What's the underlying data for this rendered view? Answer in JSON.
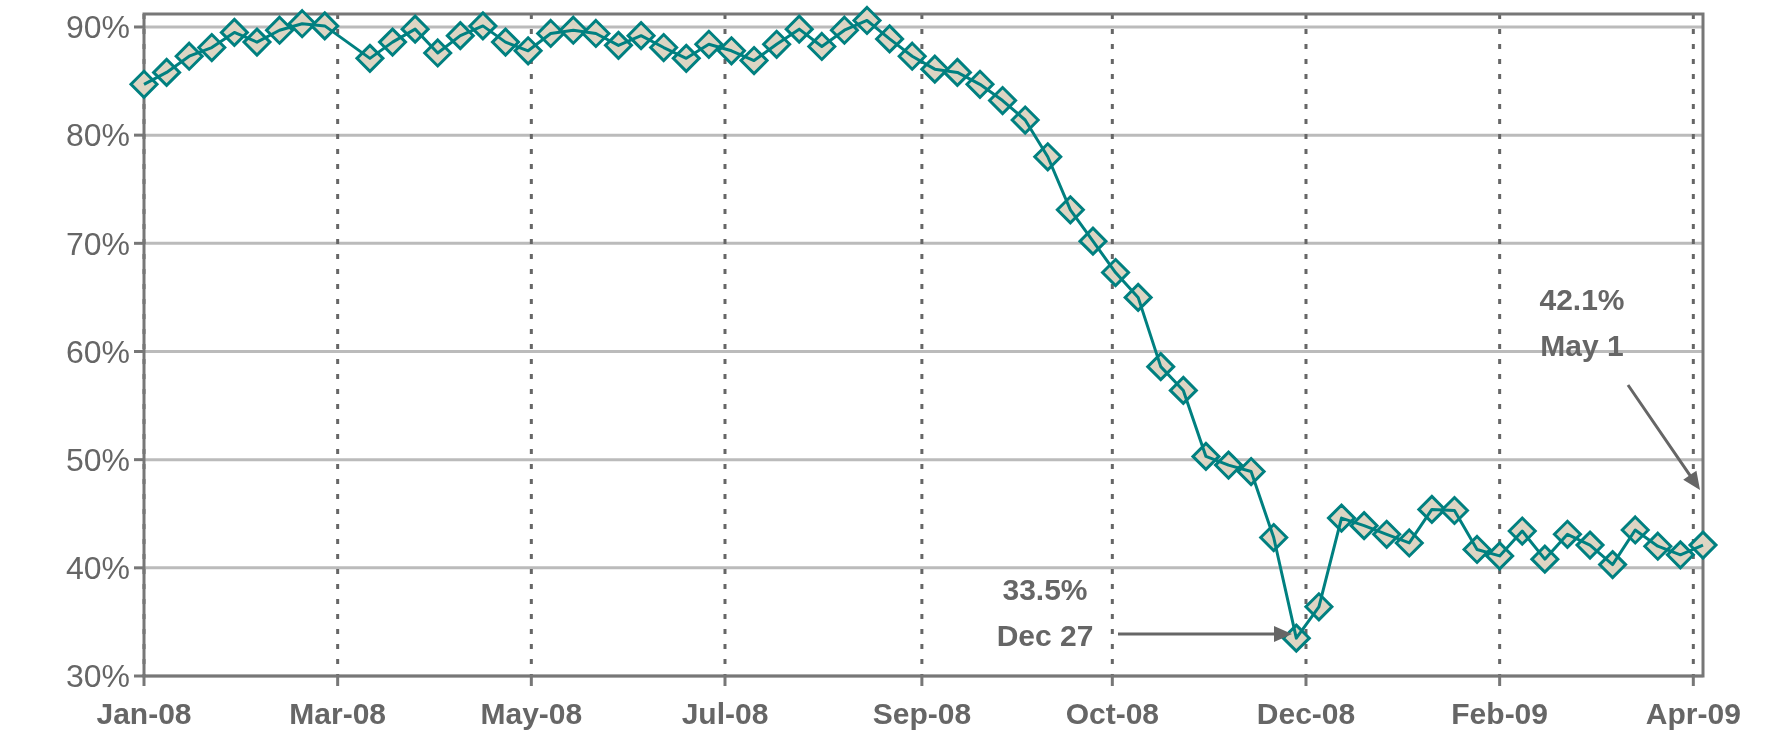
{
  "chart_data": {
    "type": "line",
    "x": [
      "2008-01-04",
      "2008-01-11",
      "2008-01-18",
      "2008-01-25",
      "2008-02-01",
      "2008-02-08",
      "2008-02-15",
      "2008-02-22",
      "2008-02-29",
      "2008-03-14",
      "2008-03-21",
      "2008-03-28",
      "2008-04-04",
      "2008-04-11",
      "2008-04-18",
      "2008-04-25",
      "2008-05-02",
      "2008-05-09",
      "2008-05-16",
      "2008-05-23",
      "2008-05-30",
      "2008-06-06",
      "2008-06-13",
      "2008-06-20",
      "2008-06-27",
      "2008-07-04",
      "2008-07-11",
      "2008-07-18",
      "2008-07-25",
      "2008-08-01",
      "2008-08-08",
      "2008-08-15",
      "2008-08-22",
      "2008-08-29",
      "2008-09-05",
      "2008-09-12",
      "2008-09-19",
      "2008-09-26",
      "2008-10-03",
      "2008-10-10",
      "2008-10-17",
      "2008-10-24",
      "2008-10-31",
      "2008-11-07",
      "2008-11-14",
      "2008-11-21",
      "2008-11-28",
      "2008-12-05",
      "2008-12-12",
      "2008-12-19",
      "2008-12-26",
      "2009-01-02",
      "2009-01-09",
      "2009-01-16",
      "2009-01-23",
      "2009-01-30",
      "2009-02-06",
      "2009-02-13",
      "2009-02-20",
      "2009-02-27",
      "2009-03-06",
      "2009-03-13",
      "2009-03-20",
      "2009-03-27",
      "2009-04-03",
      "2009-04-10",
      "2009-04-17",
      "2009-04-24",
      "2009-05-01"
    ],
    "series": [
      {
        "color": "#008080",
        "values": [
          84.7,
          85.8,
          87.3,
          88.1,
          89.5,
          88.6,
          89.7,
          90.3,
          90.1,
          87.1,
          88.6,
          89.8,
          87.6,
          89.2,
          90.1,
          88.6,
          87.8,
          89.4,
          89.7,
          89.4,
          88.3,
          89.2,
          88.1,
          87.1,
          88.4,
          87.8,
          86.9,
          88.4,
          89.8,
          88.2,
          89.7,
          90.6,
          88.9,
          87.3,
          86.1,
          85.8,
          84.7,
          83.2,
          81.4,
          78.0,
          73.1,
          70.2,
          67.3,
          65.0,
          58.6,
          56.4,
          50.3,
          49.5,
          48.9,
          42.8,
          33.5,
          36.4,
          44.6,
          43.9,
          43.1,
          42.3,
          45.4,
          45.3,
          41.7,
          41.1,
          43.4,
          40.8,
          43.1,
          42.1,
          40.3,
          43.5,
          42.0,
          41.2,
          42.1
        ]
      }
    ],
    "xlim": [
      "2008-01-04",
      "2009-05-01"
    ],
    "xticks": [
      {
        "value": "2008-01-04",
        "label": "Jan-08"
      },
      {
        "value": "2008-03-04",
        "label": "Mar-08"
      },
      {
        "value": "2008-05-03",
        "label": "May-08"
      },
      {
        "value": "2008-07-02",
        "label": "Jul-08"
      },
      {
        "value": "2008-09-01",
        "label": "Sep-08"
      },
      {
        "value": "2008-10-30",
        "label": "Oct-08"
      },
      {
        "value": "2008-12-29",
        "label": "Dec-08"
      },
      {
        "value": "2009-02-27",
        "label": "Feb-09"
      },
      {
        "value": "2009-04-28",
        "label": "Apr-09"
      }
    ],
    "ylim": [
      30,
      91.2
    ],
    "yticks": [
      {
        "value": 30,
        "label": "30%"
      },
      {
        "value": 40,
        "label": "40%"
      },
      {
        "value": 50,
        "label": "50%"
      },
      {
        "value": 60,
        "label": "60%"
      },
      {
        "value": 70,
        "label": "70%"
      },
      {
        "value": 80,
        "label": "80%"
      },
      {
        "value": 90,
        "label": "90%"
      }
    ],
    "grid": true,
    "marker": "diamond",
    "line_style": "solid",
    "annotations": [
      "33.5%\nDec 27",
      "42.1%\nMay 1"
    ]
  }
}
